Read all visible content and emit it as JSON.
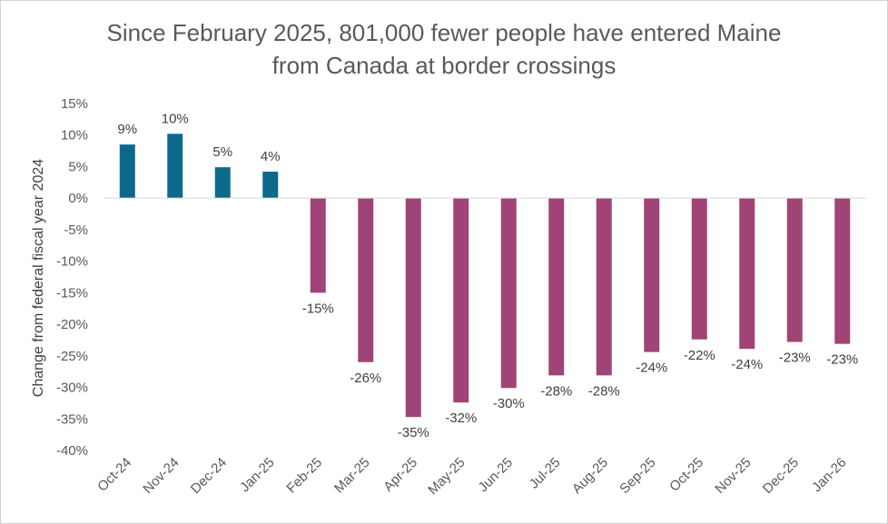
{
  "chart_data": {
    "type": "bar",
    "title": "Since February 2025, 801,000 fewer people have entered Maine from Canada at border crossings",
    "title_lines": [
      "Since February 2025, 801,000 fewer people have entered Maine",
      "from Canada at border crossings"
    ],
    "xlabel": "",
    "ylabel": "Change from federal fiscal year 2024",
    "ylim": [
      -40,
      15
    ],
    "yticks": [
      15,
      10,
      5,
      0,
      -5,
      -10,
      -15,
      -20,
      -25,
      -30,
      -35,
      -40
    ],
    "ytick_labels": [
      "15%",
      "10%",
      "5%",
      "0%",
      "-5%",
      "-10%",
      "-15%",
      "-20%",
      "-25%",
      "-30%",
      "-35%",
      "-40%"
    ],
    "categories": [
      "Oct-24",
      "Nov-24",
      "Dec-24",
      "Jan-25",
      "Feb-25",
      "Mar-25",
      "Apr-25",
      "May-25",
      "Jun-25",
      "Jul-25",
      "Aug-25",
      "Sep-25",
      "Oct-25",
      "Nov-25",
      "Dec-25",
      "Jan-26"
    ],
    "values": [
      8.5,
      10.2,
      4.9,
      4.2,
      -15.0,
      -26.0,
      -34.7,
      -32.4,
      -30.1,
      -28.1,
      -28.1,
      -24.4,
      -22.4,
      -23.9,
      -22.8,
      -23.1
    ],
    "data_labels": [
      "9%",
      "10%",
      "5%",
      "4%",
      "-15%",
      "-26%",
      "-35%",
      "-32%",
      "-30%",
      "-28%",
      "-28%",
      "-24%",
      "-22%",
      "-24%",
      "-23%",
      "-23%"
    ],
    "colors": {
      "positive": "#0b6a8c",
      "negative": "#a04477"
    },
    "grid": false
  }
}
